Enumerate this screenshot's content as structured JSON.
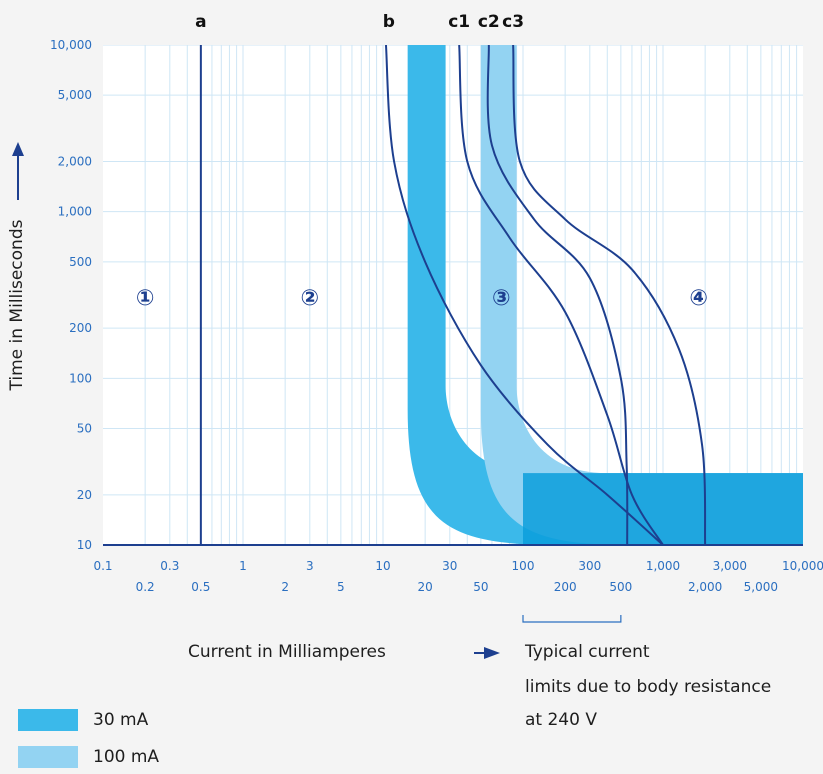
{
  "chart_data": {
    "type": "line",
    "x_scale": "log",
    "y_scale": "log",
    "xlim": [
      0.1,
      10000
    ],
    "ylim": [
      10,
      10000
    ],
    "grid": true,
    "ylabel": "Time in Milliseconds",
    "xlabel": "Current in Milliamperes",
    "x_ticks": [
      0.1,
      0.2,
      0.3,
      0.5,
      1,
      2,
      3,
      5,
      10,
      20,
      30,
      50,
      100,
      200,
      300,
      500,
      1000,
      2000,
      3000,
      5000,
      10000
    ],
    "x_tick_labels_top": [
      {
        "x": 0.1,
        "label": "0.1"
      },
      {
        "x": 0.3,
        "label": "0.3"
      },
      {
        "x": 1,
        "label": "1"
      },
      {
        "x": 3,
        "label": "3"
      },
      {
        "x": 10,
        "label": "10"
      },
      {
        "x": 30,
        "label": "30"
      },
      {
        "x": 100,
        "label": "100"
      },
      {
        "x": 300,
        "label": "300"
      },
      {
        "x": 1000,
        "label": "1,000"
      },
      {
        "x": 3000,
        "label": "3,000"
      },
      {
        "x": 10000,
        "label": "10,000"
      }
    ],
    "x_tick_labels_bottom": [
      {
        "x": 0.2,
        "label": "0.2"
      },
      {
        "x": 0.5,
        "label": "0.5"
      },
      {
        "x": 2,
        "label": "2"
      },
      {
        "x": 5,
        "label": "5"
      },
      {
        "x": 20,
        "label": "20"
      },
      {
        "x": 50,
        "label": "50"
      },
      {
        "x": 200,
        "label": "200"
      },
      {
        "x": 500,
        "label": "500"
      },
      {
        "x": 2000,
        "label": "2,000"
      },
      {
        "x": 5000,
        "label": "5,000"
      }
    ],
    "y_ticks": [
      10,
      20,
      50,
      100,
      200,
      500,
      1000,
      2000,
      5000,
      10000
    ],
    "y_tick_labels": [
      "10",
      "20",
      "50",
      "100",
      "200",
      "500",
      "1,000",
      "2,000",
      "5,000",
      "10,000"
    ],
    "curves": [
      {
        "name": "a",
        "points": [
          [
            0.5,
            10
          ],
          [
            0.5,
            10000
          ]
        ]
      },
      {
        "name": "b",
        "points": [
          [
            10.5,
            10000
          ],
          [
            12,
            2000
          ],
          [
            20,
            500
          ],
          [
            50,
            120
          ],
          [
            150,
            40
          ],
          [
            400,
            20
          ],
          [
            1000,
            10
          ]
        ]
      },
      {
        "name": "c1",
        "points": [
          [
            35,
            10000
          ],
          [
            40,
            2000
          ],
          [
            80,
            700
          ],
          [
            200,
            250
          ],
          [
            400,
            60
          ],
          [
            600,
            20
          ],
          [
            1000,
            10
          ]
        ]
      },
      {
        "name": "c2",
        "points": [
          [
            57,
            10000
          ],
          [
            60,
            2500
          ],
          [
            120,
            900
          ],
          [
            300,
            400
          ],
          [
            500,
            100
          ],
          [
            550,
            30
          ],
          [
            555,
            10
          ]
        ]
      },
      {
        "name": "c3",
        "points": [
          [
            85,
            10000
          ],
          [
            95,
            2000
          ],
          [
            200,
            900
          ],
          [
            600,
            450
          ],
          [
            1300,
            150
          ],
          [
            1900,
            40
          ],
          [
            2000,
            10
          ]
        ]
      }
    ],
    "bands": [
      {
        "name": "30 mA",
        "color": "#3bb9ea",
        "x_range": [
          15,
          28
        ],
        "y_knee": 65,
        "y_floor_range": [
          10,
          27
        ]
      },
      {
        "name": "100 mA",
        "color": "#93d3f2",
        "x_range": [
          50,
          90
        ],
        "y_knee": 65,
        "y_floor_range": [
          10,
          27
        ]
      }
    ],
    "zones": [
      {
        "label": "①",
        "x": 0.2,
        "y": 300
      },
      {
        "label": "②",
        "x": 3,
        "y": 300
      },
      {
        "label": "③",
        "x": 70,
        "y": 300
      },
      {
        "label": "④",
        "x": 1800,
        "y": 300
      }
    ],
    "curve_labels": [
      {
        "label": "a",
        "x": 0.5
      },
      {
        "label": "b",
        "x": 11
      },
      {
        "label": "c1",
        "x": 35
      },
      {
        "label": "c2",
        "x": 57
      },
      {
        "label": "c3",
        "x": 85
      }
    ],
    "annotation": {
      "range": [
        100,
        500
      ],
      "text_lines": [
        "Typical current",
        "limits due to body resistance",
        "at 240 V"
      ]
    }
  },
  "colors": {
    "curve": "#1d3f8f",
    "grid": "#cfe6f5",
    "tick_label": "#2b6fc0",
    "plot_bg": "#ffffff",
    "page_bg": "#f4f4f4",
    "band_30": "#3bb9ea",
    "band_100": "#93d3f2",
    "band_dark": "#0a9ddc"
  },
  "legend": [
    {
      "label": "30 mA",
      "color": "#3bb9ea"
    },
    {
      "label": "100 mA",
      "color": "#93d3f2"
    }
  ]
}
